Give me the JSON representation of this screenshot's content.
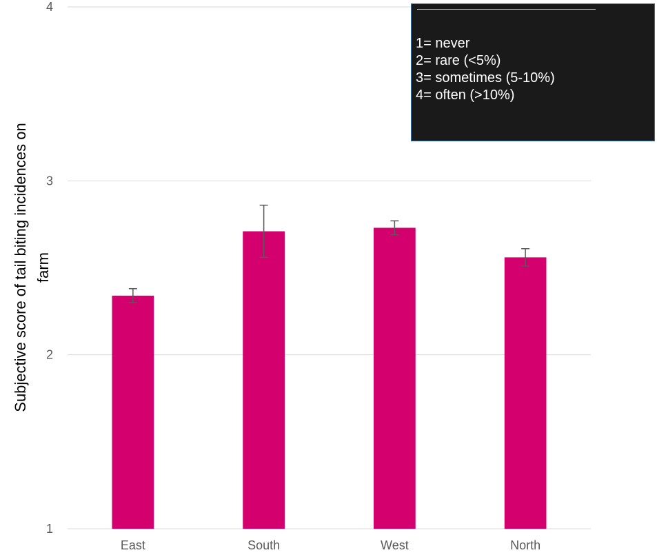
{
  "chart_data": {
    "type": "bar",
    "categories": [
      "East",
      "South",
      "West",
      "North"
    ],
    "values": [
      2.34,
      2.71,
      2.73,
      2.56
    ],
    "errors": [
      0.04,
      0.15,
      0.04,
      0.05
    ],
    "ylim": [
      1,
      4
    ],
    "yticks": [
      "1",
      "2",
      "3",
      "4"
    ],
    "ylabel_line1": "Subjective score of tail biting incidences on",
    "ylabel_line2": "farm",
    "xlabel": "",
    "grid": true,
    "colors": {
      "bar": "#D4006E",
      "grid": "#d9d9d9",
      "error": "#595959"
    }
  },
  "legend": {
    "lines": [
      "1= never",
      "2= rare (<5%)",
      "3= sometimes (5-10%)",
      "4= often (>10%)"
    ]
  }
}
